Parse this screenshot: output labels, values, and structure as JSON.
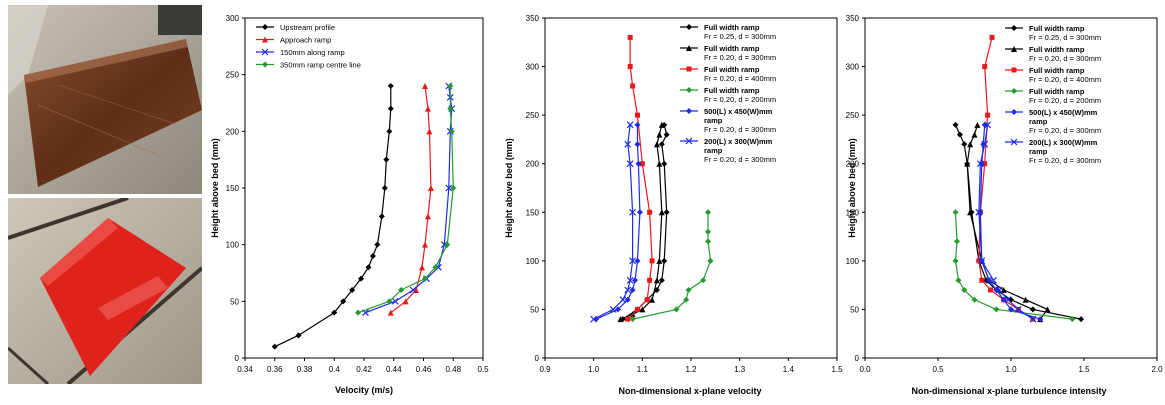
{
  "photos": [
    {
      "name": "full-width-ramp-photo",
      "colors": {
        "base": "#b9b2a6",
        "ramp": "#6e3a22"
      }
    },
    {
      "name": "red-ramp-photo",
      "colors": {
        "base": "#bdb6a6",
        "ramp": "#e0221c"
      }
    }
  ],
  "chart_data": [
    {
      "type": "line",
      "xlabel": "Velocity (m/s)",
      "ylabel": "Height above bed (mm)",
      "xlim": [
        0.34,
        0.5
      ],
      "ylim": [
        0,
        300
      ],
      "xticks": [
        "0.34",
        "0.36",
        "0.38",
        "0.4",
        "0.42",
        "0.44",
        "0.46",
        "0.48",
        "0.5"
      ],
      "yticks": [
        "0",
        "50",
        "100",
        "150",
        "200",
        "250",
        "300"
      ],
      "legend_position": "top-left",
      "series": [
        {
          "name": "Upstream profile",
          "color": "#000000",
          "marker": "diamond",
          "x": [
            0.36,
            0.376,
            0.4,
            0.406,
            0.412,
            0.418,
            0.423,
            0.426,
            0.429,
            0.432,
            0.434,
            0.435,
            0.437,
            0.438,
            0.438
          ],
          "y": [
            10,
            20,
            40,
            50,
            60,
            70,
            80,
            90,
            100,
            125,
            150,
            175,
            200,
            220,
            240
          ]
        },
        {
          "name": "Approach ramp",
          "color": "#e8191b",
          "marker": "triangle",
          "x": [
            0.438,
            0.448,
            0.455,
            0.459,
            0.461,
            0.463,
            0.465,
            0.464,
            0.463,
            0.461
          ],
          "y": [
            40,
            50,
            60,
            80,
            100,
            125,
            150,
            200,
            220,
            240
          ]
        },
        {
          "name": "150mm along ramp",
          "color": "#1f2be8",
          "marker": "x",
          "x": [
            0.421,
            0.441,
            0.453,
            0.462,
            0.47,
            0.474,
            0.477,
            0.478,
            0.479,
            0.478,
            0.477
          ],
          "y": [
            40,
            50,
            60,
            70,
            80,
            100,
            150,
            200,
            220,
            230,
            240
          ]
        },
        {
          "name": "350mm ramp centre line",
          "color": "#239b2f",
          "marker": "diamond",
          "x": [
            0.416,
            0.437,
            0.445,
            0.461,
            0.468,
            0.476,
            0.48,
            0.479,
            0.478,
            0.478
          ],
          "y": [
            40,
            50,
            60,
            70,
            80,
            100,
            150,
            200,
            220,
            240
          ]
        }
      ]
    },
    {
      "type": "line",
      "xlabel": "Non-dimensional x-plane velocity",
      "ylabel": "Height above bed (mm)",
      "xlim": [
        0.9,
        1.5
      ],
      "ylim": [
        0,
        350
      ],
      "xticks": [
        "0.9",
        "1.0",
        "1.1",
        "1.2",
        "1.3",
        "1.4",
        "1.5"
      ],
      "yticks": [
        "0",
        "50",
        "100",
        "150",
        "200",
        "250",
        "300",
        "350"
      ],
      "legend_position": "top-right",
      "series": [
        {
          "name": "Full width ramp",
          "sub": "Fr = 0.25, d = 300mm",
          "color": "#000000",
          "marker": "diamond",
          "x": [
            1.06,
            1.09,
            1.11,
            1.13,
            1.14,
            1.145,
            1.15,
            1.145,
            1.14,
            1.15,
            1.145
          ],
          "y": [
            40,
            50,
            60,
            70,
            80,
            100,
            150,
            200,
            220,
            230,
            240
          ]
        },
        {
          "name": "Full width ramp",
          "sub": "Fr = 0.20, d = 300mm",
          "color": "#000000",
          "marker": "triangle",
          "x": [
            1.055,
            1.08,
            1.1,
            1.12,
            1.13,
            1.135,
            1.14,
            1.135,
            1.13,
            1.135,
            1.14
          ],
          "y": [
            40,
            45,
            50,
            60,
            80,
            100,
            150,
            200,
            220,
            230,
            240
          ]
        },
        {
          "name": "Full width ramp",
          "sub": "Fr = 0.20, d = 400mm",
          "color": "#e8191b",
          "marker": "square",
          "x": [
            1.07,
            1.09,
            1.11,
            1.115,
            1.12,
            1.115,
            1.1,
            1.09,
            1.08,
            1.075,
            1.075
          ],
          "y": [
            40,
            50,
            60,
            80,
            100,
            150,
            200,
            250,
            280,
            300,
            330
          ]
        },
        {
          "name": "Full width ramp",
          "sub": "Fr = 0.20, d = 200mm",
          "color": "#239b2f",
          "marker": "diamond",
          "x": [
            1.08,
            1.17,
            1.19,
            1.195,
            1.225,
            1.24,
            1.235,
            1.235,
            1.235
          ],
          "y": [
            40,
            50,
            60,
            70,
            80,
            100,
            120,
            130,
            150
          ]
        },
        {
          "name": "500(L) x 450(W)mm ramp",
          "sub": "Fr = 0.20, d = 300mm",
          "color": "#1f2be8",
          "marker": "diamond",
          "x": [
            1.005,
            1.05,
            1.07,
            1.08,
            1.085,
            1.09,
            1.095,
            1.092,
            1.09,
            1.09
          ],
          "y": [
            40,
            50,
            60,
            70,
            80,
            100,
            150,
            200,
            220,
            240
          ]
        },
        {
          "name": "200(L) x 300(W)mm ramp",
          "sub": "Fr = 0.20, d = 300mm",
          "color": "#1f2be8",
          "marker": "x",
          "x": [
            1.0,
            1.04,
            1.06,
            1.07,
            1.075,
            1.08,
            1.08,
            1.075,
            1.07,
            1.075
          ],
          "y": [
            40,
            50,
            60,
            70,
            80,
            100,
            150,
            200,
            220,
            240
          ]
        }
      ]
    },
    {
      "type": "line",
      "xlabel": "Non-dimensional x-plane turbulence intensity",
      "ylabel": "Height above bed (mm)",
      "xlim": [
        0.0,
        2.0
      ],
      "ylim": [
        0,
        350
      ],
      "xticks": [
        "0.0",
        "0.5",
        "1.0",
        "1.5",
        "2.0"
      ],
      "yticks": [
        "0",
        "50",
        "100",
        "150",
        "200",
        "250",
        "300",
        "350"
      ],
      "legend_position": "top-right",
      "series": [
        {
          "name": "Full width ramp",
          "sub": "Fr = 0.25, d = 300mm",
          "color": "#000000",
          "marker": "diamond",
          "x": [
            1.48,
            1.15,
            1.0,
            0.9,
            0.83,
            0.78,
            0.73,
            0.7,
            0.68,
            0.65,
            0.62
          ],
          "y": [
            40,
            50,
            60,
            70,
            80,
            100,
            150,
            200,
            220,
            230,
            240
          ]
        },
        {
          "name": "Full width ramp",
          "sub": "Fr = 0.20, d = 300mm",
          "color": "#000000",
          "marker": "triangle",
          "x": [
            1.2,
            1.25,
            1.1,
            0.95,
            0.85,
            0.8,
            0.72,
            0.7,
            0.72,
            0.75,
            0.77
          ],
          "y": [
            40,
            50,
            60,
            70,
            80,
            100,
            150,
            200,
            220,
            230,
            240
          ]
        },
        {
          "name": "Full width ramp",
          "sub": "Fr = 0.20, d = 400mm",
          "color": "#e8191b",
          "marker": "square",
          "x": [
            1.15,
            1.05,
            0.95,
            0.86,
            0.8,
            0.78,
            0.79,
            0.82,
            0.84,
            0.82,
            0.87
          ],
          "y": [
            40,
            50,
            60,
            70,
            80,
            100,
            150,
            200,
            250,
            300,
            330
          ]
        },
        {
          "name": "Full width ramp",
          "sub": "Fr = 0.20, d = 200mm",
          "color": "#239b2f",
          "marker": "diamond",
          "x": [
            1.42,
            0.9,
            0.75,
            0.68,
            0.64,
            0.62,
            0.63,
            0.62
          ],
          "y": [
            40,
            50,
            60,
            70,
            80,
            100,
            120,
            150
          ]
        },
        {
          "name": "500(L) x 450(W)mm ramp",
          "sub": "Fr = 0.20, d = 300mm",
          "color": "#1f2be8",
          "marker": "diamond",
          "x": [
            1.2,
            1.0,
            0.95,
            0.9,
            0.85,
            0.8,
            0.79,
            0.8,
            0.81,
            0.82
          ],
          "y": [
            40,
            50,
            60,
            70,
            80,
            100,
            150,
            200,
            220,
            240
          ]
        },
        {
          "name": "200(L) x 300(W)mm ramp",
          "sub": "Fr = 0.20, d = 300mm",
          "color": "#1f2be8",
          "marker": "x",
          "x": [
            1.15,
            1.05,
            0.98,
            0.92,
            0.88,
            0.8,
            0.78,
            0.79,
            0.82,
            0.84
          ],
          "y": [
            40,
            50,
            60,
            70,
            80,
            100,
            150,
            200,
            220,
            240
          ]
        }
      ]
    }
  ]
}
